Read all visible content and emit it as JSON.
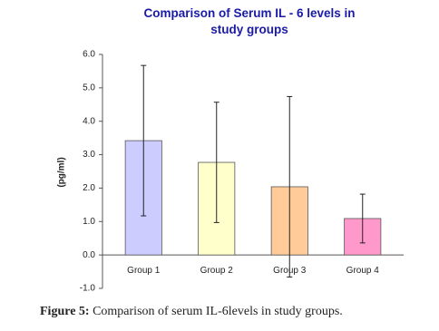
{
  "chart_data": {
    "type": "bar",
    "title": "Comparison of Serum IL - 6 levels in study groups",
    "y_label": "(pg/ml)",
    "categories": [
      "Group 1",
      "Group 2",
      "Group 3",
      "Group 4"
    ],
    "values": [
      3.42,
      2.77,
      2.04,
      1.09
    ],
    "errors": [
      2.25,
      1.8,
      2.7,
      0.73
    ],
    "colors": [
      "#ccccff",
      "#ffffcc",
      "#ffcc99",
      "#ff99cc"
    ],
    "ylim": [
      -1,
      6
    ],
    "yticks": [
      {
        "value": -1,
        "label": "-1.0"
      },
      {
        "value": 0,
        "label": "0.0"
      },
      {
        "value": 1,
        "label": "1.0"
      },
      {
        "value": 2,
        "label": "2.0"
      },
      {
        "value": 3,
        "label": "3.0"
      },
      {
        "value": 4,
        "label": "4.0"
      },
      {
        "value": 5,
        "label": "5.0"
      },
      {
        "value": 6,
        "label": "6.0"
      }
    ]
  },
  "caption": {
    "label": "Figure 5:",
    "text": "Comparison of serum IL-6levels in study groups."
  }
}
